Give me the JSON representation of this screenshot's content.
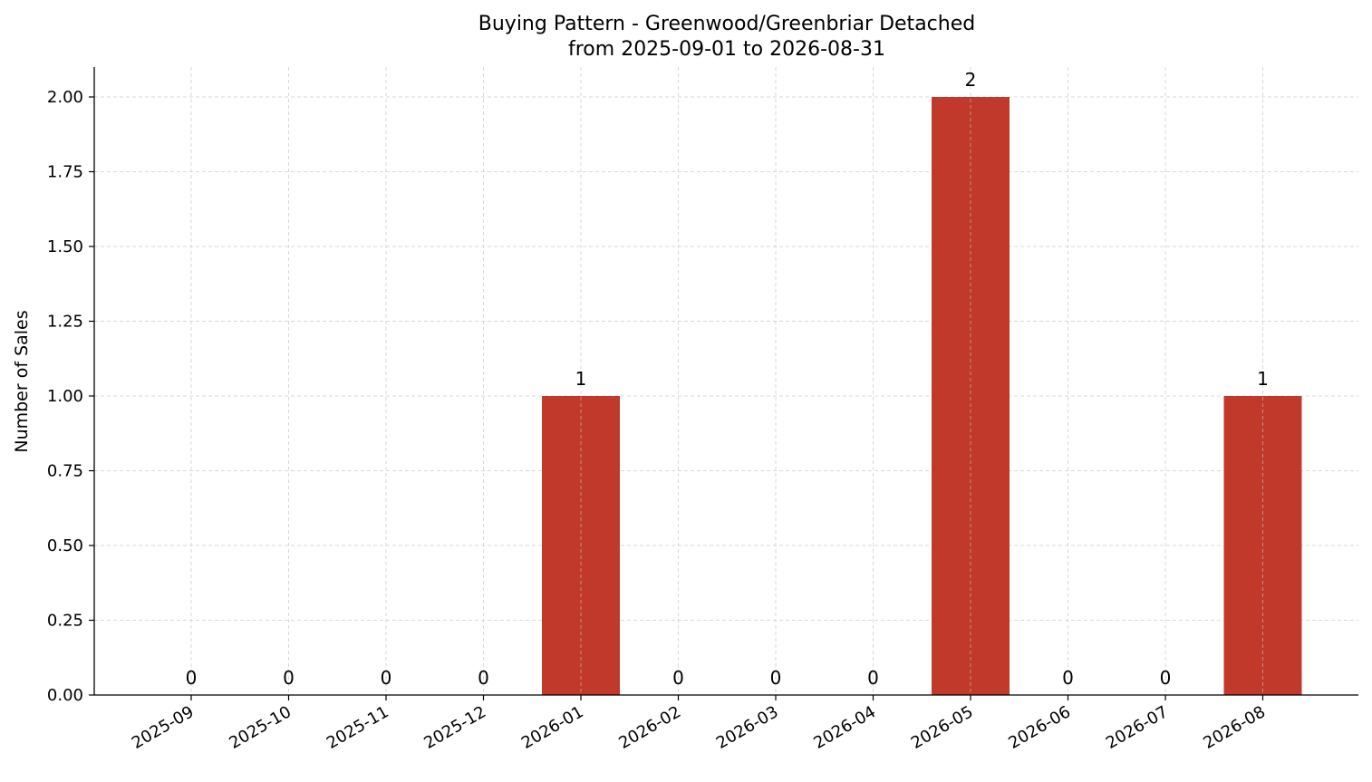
{
  "chart_data": {
    "type": "bar",
    "title": "Buying Pattern - Greenwood/Greenbriar Detached",
    "subtitle": "from 2025-09-01 to 2026-08-31",
    "xlabel": "",
    "ylabel": "Number of Sales",
    "categories": [
      "2025-09",
      "2025-10",
      "2025-11",
      "2025-12",
      "2026-01",
      "2026-02",
      "2026-03",
      "2026-04",
      "2026-05",
      "2026-06",
      "2026-07",
      "2026-08"
    ],
    "values": [
      0,
      0,
      0,
      0,
      1,
      0,
      0,
      0,
      2,
      0,
      0,
      1
    ],
    "data_labels": [
      "0",
      "0",
      "0",
      "0",
      "1",
      "0",
      "0",
      "0",
      "2",
      "0",
      "0",
      "1"
    ],
    "ylim": [
      0,
      2.1
    ],
    "yticks": [
      0,
      0.25,
      0.5,
      0.75,
      1.0,
      1.25,
      1.5,
      1.75,
      2.0
    ],
    "ytick_labels": [
      "0.00",
      "0.25",
      "0.50",
      "0.75",
      "1.00",
      "1.25",
      "1.50",
      "1.75",
      "2.00"
    ],
    "grid": true,
    "bar_color": "#c0392b",
    "grid_color": "#d9d9d9"
  }
}
